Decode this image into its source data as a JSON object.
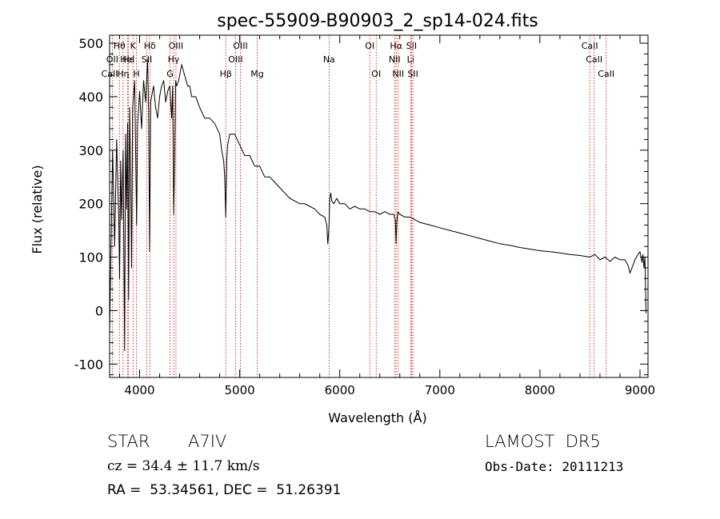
{
  "chart_data": {
    "type": "line",
    "title": "spec-55909-B90903_2_sp14-024.fits",
    "xlabel": "Wavelength (Å)",
    "ylabel": "Flux (relative)",
    "xlim": [
      3700,
      9080
    ],
    "ylim": [
      -125,
      515
    ],
    "xticks": [
      4000,
      5000,
      6000,
      7000,
      8000,
      9000
    ],
    "yticks": [
      -100,
      0,
      100,
      200,
      300,
      400,
      500
    ],
    "grid": false,
    "series": [
      {
        "x": [
          3700,
          3730,
          3750,
          3770,
          3790,
          3800,
          3810,
          3820,
          3835,
          3850,
          3860,
          3870,
          3880,
          3890,
          3900,
          3910,
          3920,
          3930,
          3950,
          3960,
          3970,
          3980,
          3990,
          4000,
          4020,
          4040,
          4060,
          4080,
          4090,
          4100,
          4110,
          4120,
          4140,
          4160,
          4180,
          4200,
          4220,
          4240,
          4260,
          4280,
          4300,
          4320,
          4330,
          4340,
          4350,
          4360,
          4370,
          4390,
          4420,
          4450,
          4480,
          4500,
          4520,
          4560,
          4600,
          4650,
          4700,
          4750,
          4800,
          4820,
          4840,
          4850,
          4861,
          4870,
          4880,
          4900,
          4950,
          5000,
          5050,
          5100,
          5150,
          5200,
          5250,
          5300,
          5350,
          5400,
          5450,
          5500,
          5550,
          5600,
          5650,
          5700,
          5750,
          5800,
          5850,
          5870,
          5880,
          5890,
          5895,
          5900,
          5910,
          5920,
          5940,
          5970,
          6000,
          6050,
          6100,
          6150,
          6200,
          6250,
          6300,
          6350,
          6400,
          6450,
          6500,
          6540,
          6555,
          6563,
          6570,
          6580,
          6600,
          6650,
          6700,
          6750,
          6800,
          6900,
          7000,
          7100,
          7200,
          7300,
          7400,
          7500,
          7600,
          7700,
          7800,
          7900,
          8000,
          8100,
          8200,
          8300,
          8400,
          8500,
          8550,
          8600,
          8650,
          8700,
          8750,
          8800,
          8850,
          8880,
          8900,
          8950,
          8980,
          9000,
          9020,
          9030,
          9040,
          9050,
          9060
        ],
        "y": [
          -40,
          300,
          120,
          320,
          180,
          60,
          280,
          170,
          300,
          -75,
          330,
          190,
          350,
          20,
          380,
          250,
          80,
          380,
          430,
          300,
          160,
          350,
          380,
          410,
          340,
          430,
          390,
          470,
          370,
          110,
          390,
          400,
          420,
          380,
          360,
          400,
          420,
          430,
          390,
          410,
          420,
          360,
          420,
          180,
          280,
          430,
          420,
          430,
          460,
          440,
          420,
          420,
          400,
          400,
          380,
          360,
          360,
          350,
          330,
          300,
          280,
          250,
          175,
          280,
          310,
          330,
          330,
          310,
          290,
          290,
          270,
          270,
          250,
          250,
          240,
          230,
          220,
          210,
          205,
          200,
          200,
          195,
          190,
          180,
          175,
          160,
          125,
          150,
          175,
          210,
          220,
          205,
          200,
          210,
          200,
          200,
          190,
          195,
          190,
          190,
          185,
          185,
          180,
          185,
          180,
          180,
          170,
          125,
          165,
          185,
          180,
          175,
          175,
          170,
          165,
          160,
          155,
          150,
          145,
          140,
          135,
          130,
          125,
          122,
          118,
          115,
          112,
          110,
          108,
          105,
          103,
          100,
          105,
          95,
          100,
          92,
          100,
          95,
          95,
          85,
          70,
          95,
          105,
          110,
          90,
          105,
          80,
          100,
          -5
        ]
      }
    ],
    "lines": [
      {
        "label": "Hθ",
        "x": 3798,
        "row": 1
      },
      {
        "label": "K",
        "x": 3934,
        "row": 1
      },
      {
        "label": "Hδ",
        "x": 4102,
        "row": 1
      },
      {
        "label": "OIII",
        "x": 4363,
        "row": 1
      },
      {
        "label": "OIII",
        "x": 5007,
        "row": 1
      },
      {
        "label": "OI",
        "x": 6300,
        "row": 1
      },
      {
        "label": "Hα",
        "x": 6563,
        "row": 1
      },
      {
        "label": "SII",
        "x": 6717,
        "row": 1
      },
      {
        "label": "CaII",
        "x": 8498,
        "row": 1
      },
      {
        "label": "OII",
        "x": 3727,
        "row": 2
      },
      {
        "label": "Hε",
        "x": 3889,
        "row": 2
      },
      {
        "label": "SII",
        "x": 4072,
        "row": 2
      },
      {
        "label": "Hγ",
        "x": 4340,
        "row": 2
      },
      {
        "label": "OIII",
        "x": 4959,
        "row": 2
      },
      {
        "label": "Na",
        "x": 5893,
        "row": 2
      },
      {
        "label": "NII",
        "x": 6548,
        "row": 2
      },
      {
        "label": "Li",
        "x": 6708,
        "row": 2
      },
      {
        "label": "CaII",
        "x": 8542,
        "row": 2
      },
      {
        "label": "CaII",
        "x": 3700,
        "row": 3
      },
      {
        "label": "Hη",
        "x": 3835,
        "row": 3
      },
      {
        "label": "H",
        "x": 3968,
        "row": 3
      },
      {
        "label": "G",
        "x": 4304,
        "row": 3
      },
      {
        "label": "Hβ",
        "x": 4861,
        "row": 3
      },
      {
        "label": "Mg",
        "x": 5175,
        "row": 3
      },
      {
        "label": "OI",
        "x": 6364,
        "row": 3
      },
      {
        "label": "NII",
        "x": 6584,
        "row": 3
      },
      {
        "label": "SII",
        "x": 6731,
        "row": 3
      },
      {
        "label": "CaII",
        "x": 8662,
        "row": 3
      },
      {
        "label": "HeI",
        "x": 3878,
        "row": 2
      }
    ]
  },
  "info": {
    "object_type": "STAR",
    "subclass": "A7IV",
    "survey": "LAMOST  DR5",
    "velocity": "cz = 34.4 ± 11.7 km/s",
    "obs_date": "Obs-Date: 20111213",
    "coords": "RA =  53.34561, DEC =  51.26391"
  },
  "colors": {
    "line": "#000000",
    "marker": "#cc0000",
    "axis": "#000000"
  }
}
